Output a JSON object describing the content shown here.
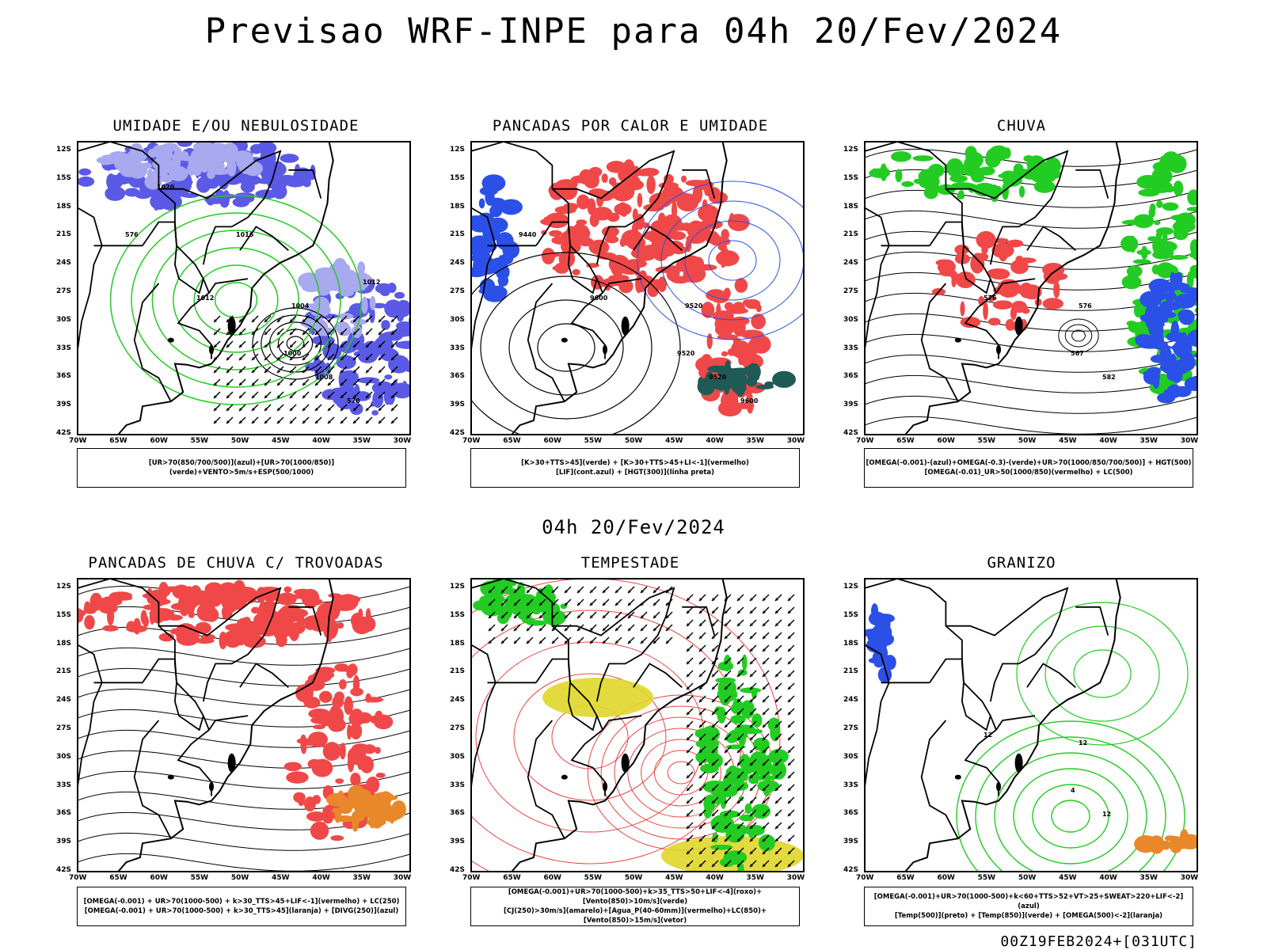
{
  "page": {
    "main_title": "Previsao WRF-INPE  para 04h 20/Fev/2024",
    "mid_title": "04h 20/Fev/2024",
    "run_stamp": "00Z19FEB2024+[031UTC]"
  },
  "axes": {
    "lat_labels": [
      "12S",
      "15S",
      "18S",
      "21S",
      "24S",
      "27S",
      "30S",
      "33S",
      "36S",
      "39S",
      "42S"
    ],
    "lon_labels": [
      "70W",
      "65W",
      "60W",
      "55W",
      "50W",
      "45W",
      "40W",
      "35W",
      "30W"
    ]
  },
  "colors": {
    "blue_fill": "#5a5ae6",
    "light_blue_fill": "#a9a9ef",
    "green": "#22cc22",
    "red_fill": "#f04848",
    "dark_teal": "#1f5a55",
    "orange": "#e8882a",
    "yellow": "#e0d62a",
    "contour_red": "#ee4444",
    "contour_blue": "#2a50e8"
  },
  "panels": [
    {
      "title": "UMIDADE E/OU NEBULOSIDADE",
      "legend": [
        "[UR>70(850/700/500)](azul)+[UR>70(1000/850)](verde)+VENTO>5m/s+ESP(500/1000)"
      ],
      "contour_labels": [
        "1012",
        "1008",
        "1004",
        "1000",
        "576",
        "570",
        "1020",
        "1016",
        "1012"
      ]
    },
    {
      "title": "PANCADAS POR CALOR E UMIDADE",
      "legend": [
        "[K>30+TTS>45](verde) + [K>30+TTS>45+LI<-1](vermelho)",
        "[LIF](cont.azul) + [HGT(300)](linha preta)"
      ],
      "contour_labels": [
        "9600",
        "9520",
        "9520",
        "9520",
        "9440",
        "9600"
      ]
    },
    {
      "title": "CHUVA",
      "legend": [
        "[OMEGA(-0.001)-(azul)+OMEGA(-0.3)-(verde)+UR>70(1000/850/700/500)] + HGT(500)",
        "[OMEGA(-0.01)_UR>50(1000/850)(vermelho) + LC(500)"
      ],
      "contour_labels": [
        "576",
        "582",
        "576",
        "567"
      ]
    },
    {
      "title": "PANCADAS DE CHUVA C/ TROVOADAS",
      "legend": [
        "[OMEGA(-0.001) + UR>70(1000-500) + k>30_TTS>45+LIF<-1](vermelho) + LC(250)",
        "[OMEGA(-0.001) + UR>70(1000-500) + k>30_TTS>45](laranja) + [DIVG(250)](azul)"
      ],
      "contour_labels": []
    },
    {
      "title": "TEMPESTADE",
      "legend": [
        "[OMEGA(-0.001)+UR>70(1000-500)+k>35_TTS>50+LIF<-4](roxo)+[Vento(850)>10m/s](verde)",
        "[CJ(250)>30m/s](amarelo)+[Agua_P(40-60mm)](vermelho)+LC(850)+[Vento(850)>15m/s](vetor)"
      ],
      "contour_labels": []
    },
    {
      "title": "GRANIZO",
      "legend": [
        "[OMEGA(-0.001)+UR>70(1000-500)+k<60+TTS>52+VT>25+SWEAT>220+LIF<-2](azul)",
        "[Temp(500)](preto) + [Temp(850)](verde) + [OMEGA(500)<-2](laranja)"
      ],
      "contour_labels": [
        "12",
        "12",
        "12",
        "4"
      ]
    }
  ]
}
